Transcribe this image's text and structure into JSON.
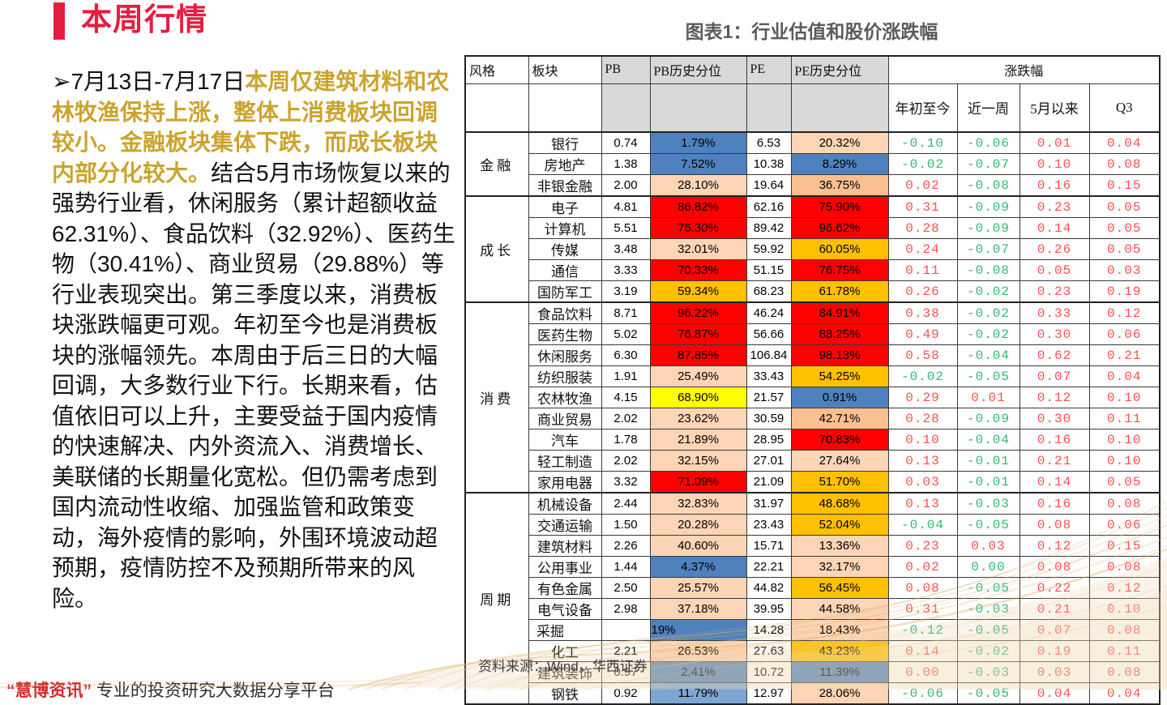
{
  "page": {
    "title": "本周行情"
  },
  "paragraph": {
    "bullet": "➢",
    "intro": "7月13日-7月17日",
    "highlight": "本周仅建筑材料和农林牧渔保持上涨，整体上消费板块回调较小。金融板块集体下跌，而成长板块内部分化较大。",
    "body": "结合5月市场恢复以来的强势行业看，休闲服务（累计超额收益62.31%）、食品饮料（32.92%）、医药生物（30.41%）、商业贸易（29.88%）等行业表现突出。第三季度以来，消费板块涨跌幅更可观。年初至今也是消费板块的涨幅领先。本周由于后三日的大幅回调，大多数行业下行。长期来看，估值依旧可以上升，主要受益于国内疫情的快速解决、内外资流入、消费增长、美联储的长期量化宽松。但仍需考虑到国内流动性收缩、加强监管和政策变动，海外疫情的影响，外围环境波动超预期，疫情防控不及预期所带来的风险。"
  },
  "chart": {
    "title": "图表1：行业估值和股价涨跌幅",
    "source": "资料来源：Wind，华西证券"
  },
  "watermark": {
    "quoted": "“慧博资讯”",
    "rest": "专业的投资研究大数据分享平台"
  },
  "colors": {
    "up": "#FF5050",
    "down": "#33B877",
    "blue": "#4E81BD",
    "light_blue": "#7EA6D4",
    "peach": "#FBD5B5",
    "orange": "#FAC090",
    "gold": "#FFC000",
    "red": "#FF0000",
    "yellow": "#FFFF00",
    "accent_red": "#E51E3F",
    "highlight_gold": "#CBA42E",
    "header_gray": "#D9D9D9"
  },
  "table": {
    "col_headers": {
      "style": "风格",
      "sector": "板块",
      "pb": "PB",
      "pb_pct": "PB历史分位",
      "pe": "PE",
      "pe_pct": "PE历史分位",
      "change": "涨跌幅",
      "sub": [
        "年初至今",
        "近一周",
        "5月以来",
        "Q3"
      ]
    },
    "groups": [
      {
        "name": "金融",
        "rows": [
          {
            "sector": "银行",
            "pb": "0.74",
            "pb_pct": "1.79%",
            "pb_bg": "blue",
            "pe": "6.53",
            "pe_pct": "20.32%",
            "pe_bg": "peach",
            "chg": [
              "-0.10",
              "-0.06",
              "0.01",
              "0.04"
            ],
            "chg_c": [
              "g",
              "g",
              "r",
              "r"
            ]
          },
          {
            "sector": "房地产",
            "pb": "1.38",
            "pb_pct": "7.52%",
            "pb_bg": "blue",
            "pe": "10.38",
            "pe_pct": "8.29%",
            "pe_bg": "blue",
            "chg": [
              "-0.02",
              "-0.07",
              "0.10",
              "0.08"
            ],
            "chg_c": [
              "g",
              "g",
              "r",
              "r"
            ]
          },
          {
            "sector": "非银金融",
            "pb": "2.00",
            "pb_pct": "28.10%",
            "pb_bg": "peach",
            "pe": "19.64",
            "pe_pct": "36.75%",
            "pe_bg": "orange",
            "chg": [
              "0.02",
              "-0.08",
              "0.16",
              "0.15"
            ],
            "chg_c": [
              "r",
              "g",
              "r",
              "r"
            ]
          }
        ]
      },
      {
        "name": "成长",
        "rows": [
          {
            "sector": "电子",
            "pb": "4.81",
            "pb_pct": "86.82%",
            "pb_bg": "red",
            "pe": "62.16",
            "pe_pct": "75.90%",
            "pe_bg": "red",
            "chg": [
              "0.31",
              "-0.09",
              "0.23",
              "0.05"
            ],
            "chg_c": [
              "r",
              "g",
              "r",
              "r"
            ]
          },
          {
            "sector": "计算机",
            "pb": "5.51",
            "pb_pct": "76.30%",
            "pb_bg": "red",
            "pe": "89.42",
            "pe_pct": "96.62%",
            "pe_bg": "red",
            "chg": [
              "0.28",
              "-0.09",
              "0.14",
              "0.05"
            ],
            "chg_c": [
              "r",
              "g",
              "r",
              "r"
            ]
          },
          {
            "sector": "传媒",
            "pb": "3.48",
            "pb_pct": "32.01%",
            "pb_bg": "peach",
            "pe": "59.92",
            "pe_pct": "60.05%",
            "pe_bg": "gold",
            "chg": [
              "0.24",
              "-0.07",
              "0.26",
              "0.05"
            ],
            "chg_c": [
              "r",
              "g",
              "r",
              "r"
            ]
          },
          {
            "sector": "通信",
            "pb": "3.33",
            "pb_pct": "70.33%",
            "pb_bg": "red",
            "pe": "51.15",
            "pe_pct": "76.75%",
            "pe_bg": "red",
            "chg": [
              "0.11",
              "-0.08",
              "0.05",
              "0.03"
            ],
            "chg_c": [
              "r",
              "g",
              "r",
              "r"
            ]
          },
          {
            "sector": "国防军工",
            "pb": "3.19",
            "pb_pct": "59.34%",
            "pb_bg": "gold",
            "pe": "68.23",
            "pe_pct": "61.78%",
            "pe_bg": "gold",
            "chg": [
              "0.26",
              "-0.02",
              "0.23",
              "0.19"
            ],
            "chg_c": [
              "r",
              "g",
              "r",
              "r"
            ]
          }
        ]
      },
      {
        "name": "消费",
        "rows": [
          {
            "sector": "食品饮料",
            "pb": "8.71",
            "pb_pct": "96.22%",
            "pb_bg": "red",
            "pe": "46.24",
            "pe_pct": "84.91%",
            "pe_bg": "red",
            "chg": [
              "0.38",
              "-0.02",
              "0.33",
              "0.12"
            ],
            "chg_c": [
              "r",
              "g",
              "r",
              "r"
            ]
          },
          {
            "sector": "医药生物",
            "pb": "5.02",
            "pb_pct": "76.87%",
            "pb_bg": "red",
            "pe": "56.66",
            "pe_pct": "88.25%",
            "pe_bg": "red",
            "chg": [
              "0.49",
              "-0.02",
              "0.30",
              "0.06"
            ],
            "chg_c": [
              "r",
              "g",
              "r",
              "r"
            ]
          },
          {
            "sector": "休闲服务",
            "pb": "6.30",
            "pb_pct": "87.85%",
            "pb_bg": "red",
            "pe": "106.84",
            "pe_pct": "98.13%",
            "pe_bg": "red",
            "chg": [
              "0.58",
              "-0.04",
              "0.62",
              "0.21"
            ],
            "chg_c": [
              "r",
              "g",
              "r",
              "r"
            ]
          },
          {
            "sector": "纺织服装",
            "pb": "1.91",
            "pb_pct": "25.49%",
            "pb_bg": "peach",
            "pe": "33.43",
            "pe_pct": "54.25%",
            "pe_bg": "gold",
            "chg": [
              "-0.02",
              "-0.05",
              "0.07",
              "0.04"
            ],
            "chg_c": [
              "g",
              "g",
              "r",
              "r"
            ]
          },
          {
            "sector": "农林牧渔",
            "pb": "4.15",
            "pb_pct": "68.90%",
            "pb_bg": "yellow",
            "pe": "21.57",
            "pe_pct": "0.91%",
            "pe_bg": "blue",
            "chg": [
              "0.29",
              "0.01",
              "0.12",
              "0.10"
            ],
            "chg_c": [
              "r",
              "r",
              "r",
              "r"
            ]
          },
          {
            "sector": "商业贸易",
            "pb": "2.02",
            "pb_pct": "23.62%",
            "pb_bg": "peach",
            "pe": "30.59",
            "pe_pct": "42.71%",
            "pe_bg": "orange",
            "chg": [
              "0.28",
              "-0.09",
              "0.30",
              "0.11"
            ],
            "chg_c": [
              "r",
              "g",
              "r",
              "r"
            ]
          },
          {
            "sector": "汽车",
            "pb": "1.78",
            "pb_pct": "21.89%",
            "pb_bg": "peach",
            "pe": "28.95",
            "pe_pct": "70.83%",
            "pe_bg": "red",
            "chg": [
              "0.10",
              "-0.04",
              "0.16",
              "0.10"
            ],
            "chg_c": [
              "r",
              "g",
              "r",
              "r"
            ]
          },
          {
            "sector": "轻工制造",
            "pb": "2.02",
            "pb_pct": "32.15%",
            "pb_bg": "peach",
            "pe": "27.01",
            "pe_pct": "27.64%",
            "pe_bg": "peach",
            "chg": [
              "0.13",
              "-0.01",
              "0.21",
              "0.10"
            ],
            "chg_c": [
              "r",
              "g",
              "r",
              "r"
            ]
          },
          {
            "sector": "家用电器",
            "pb": "3.32",
            "pb_pct": "71.09%",
            "pb_bg": "red",
            "pe": "21.09",
            "pe_pct": "51.70%",
            "pe_bg": "gold",
            "chg": [
              "0.03",
              "-0.01",
              "0.14",
              "0.05"
            ],
            "chg_c": [
              "r",
              "g",
              "r",
              "r"
            ]
          }
        ]
      },
      {
        "name": "周期",
        "rows": [
          {
            "sector": "机械设备",
            "pb": "2.44",
            "pb_pct": "32.83%",
            "pb_bg": "peach",
            "pe": "31.97",
            "pe_pct": "48.68%",
            "pe_bg": "gold",
            "chg": [
              "0.13",
              "-0.03",
              "0.16",
              "0.08"
            ],
            "chg_c": [
              "r",
              "g",
              "r",
              "r"
            ]
          },
          {
            "sector": "交通运输",
            "pb": "1.50",
            "pb_pct": "20.28%",
            "pb_bg": "peach",
            "pe": "23.43",
            "pe_pct": "52.04%",
            "pe_bg": "gold",
            "chg": [
              "-0.04",
              "-0.05",
              "0.08",
              "0.06"
            ],
            "chg_c": [
              "g",
              "g",
              "r",
              "r"
            ]
          },
          {
            "sector": "建筑材料",
            "pb": "2.26",
            "pb_pct": "40.60%",
            "pb_bg": "peach",
            "pe": "15.71",
            "pe_pct": "13.36%",
            "pe_bg": "peach",
            "chg": [
              "0.23",
              "0.03",
              "0.12",
              "0.15"
            ],
            "chg_c": [
              "r",
              "r",
              "r",
              "r"
            ]
          },
          {
            "sector": "公用事业",
            "pb": "1.44",
            "pb_pct": "4.37%",
            "pb_bg": "blue",
            "pe": "22.21",
            "pe_pct": "32.17%",
            "pe_bg": "peach",
            "chg": [
              "0.02",
              "0.00",
              "0.08",
              "0.08"
            ],
            "chg_c": [
              "r",
              "g",
              "r",
              "r"
            ]
          },
          {
            "sector": "有色金属",
            "pb": "2.50",
            "pb_pct": "25.57%",
            "pb_bg": "peach",
            "pe": "44.82",
            "pe_pct": "56.45%",
            "pe_bg": "gold",
            "chg": [
              "0.08",
              "-0.05",
              "0.22",
              "0.12"
            ],
            "chg_c": [
              "r",
              "g",
              "r",
              "r"
            ]
          },
          {
            "sector": "电气设备",
            "pb": "2.98",
            "pb_pct": "37.18%",
            "pb_bg": "peach",
            "pe": "39.95",
            "pe_pct": "44.58%",
            "pe_bg": "peach",
            "chg": [
              "0.31",
              "-0.03",
              "0.21",
              "0.10"
            ],
            "chg_c": [
              "r",
              "g",
              "r",
              "r"
            ]
          },
          {
            "sector": "采掘",
            "pb": "",
            "pb_pct": "19%",
            "pb_bg": "blue",
            "pe": "14.28",
            "pe_pct": "18.43%",
            "pe_bg": "peach",
            "chg": [
              "-0.12",
              "-0.05",
              "0.07",
              "0.08"
            ],
            "chg_c": [
              "g",
              "g",
              "r",
              "r"
            ],
            "straddle": true,
            "pct_align": "left"
          },
          {
            "sector": "化工",
            "pb": "2.21",
            "pb_pct": "26.53%",
            "pb_bg": "peach",
            "pe": "27.63",
            "pe_pct": "43.23%",
            "pe_bg": "gold",
            "chg": [
              "0.14",
              "-0.02",
              "0.19",
              "0.11"
            ],
            "chg_c": [
              "r",
              "g",
              "r",
              "r"
            ]
          },
          {
            "sector": "建筑装饰",
            "pb": "0.97",
            "pb_pct": "2.41%",
            "pb_bg": "blue",
            "pe": "10.72",
            "pe_pct": "11.39%",
            "pe_bg": "blue",
            "chg": [
              "0.00",
              "-0.03",
              "0.03",
              "0.08"
            ],
            "chg_c": [
              "r",
              "g",
              "r",
              "r"
            ]
          },
          {
            "sector": "钢铁",
            "pb": "0.92",
            "pb_pct": "11.79%",
            "pb_bg": "light_blue",
            "pe": "12.97",
            "pe_pct": "28.06%",
            "pe_bg": "peach",
            "chg": [
              "-0.06",
              "-0.05",
              "0.04",
              "0.04"
            ],
            "chg_c": [
              "g",
              "g",
              "r",
              "r"
            ]
          }
        ]
      }
    ]
  }
}
